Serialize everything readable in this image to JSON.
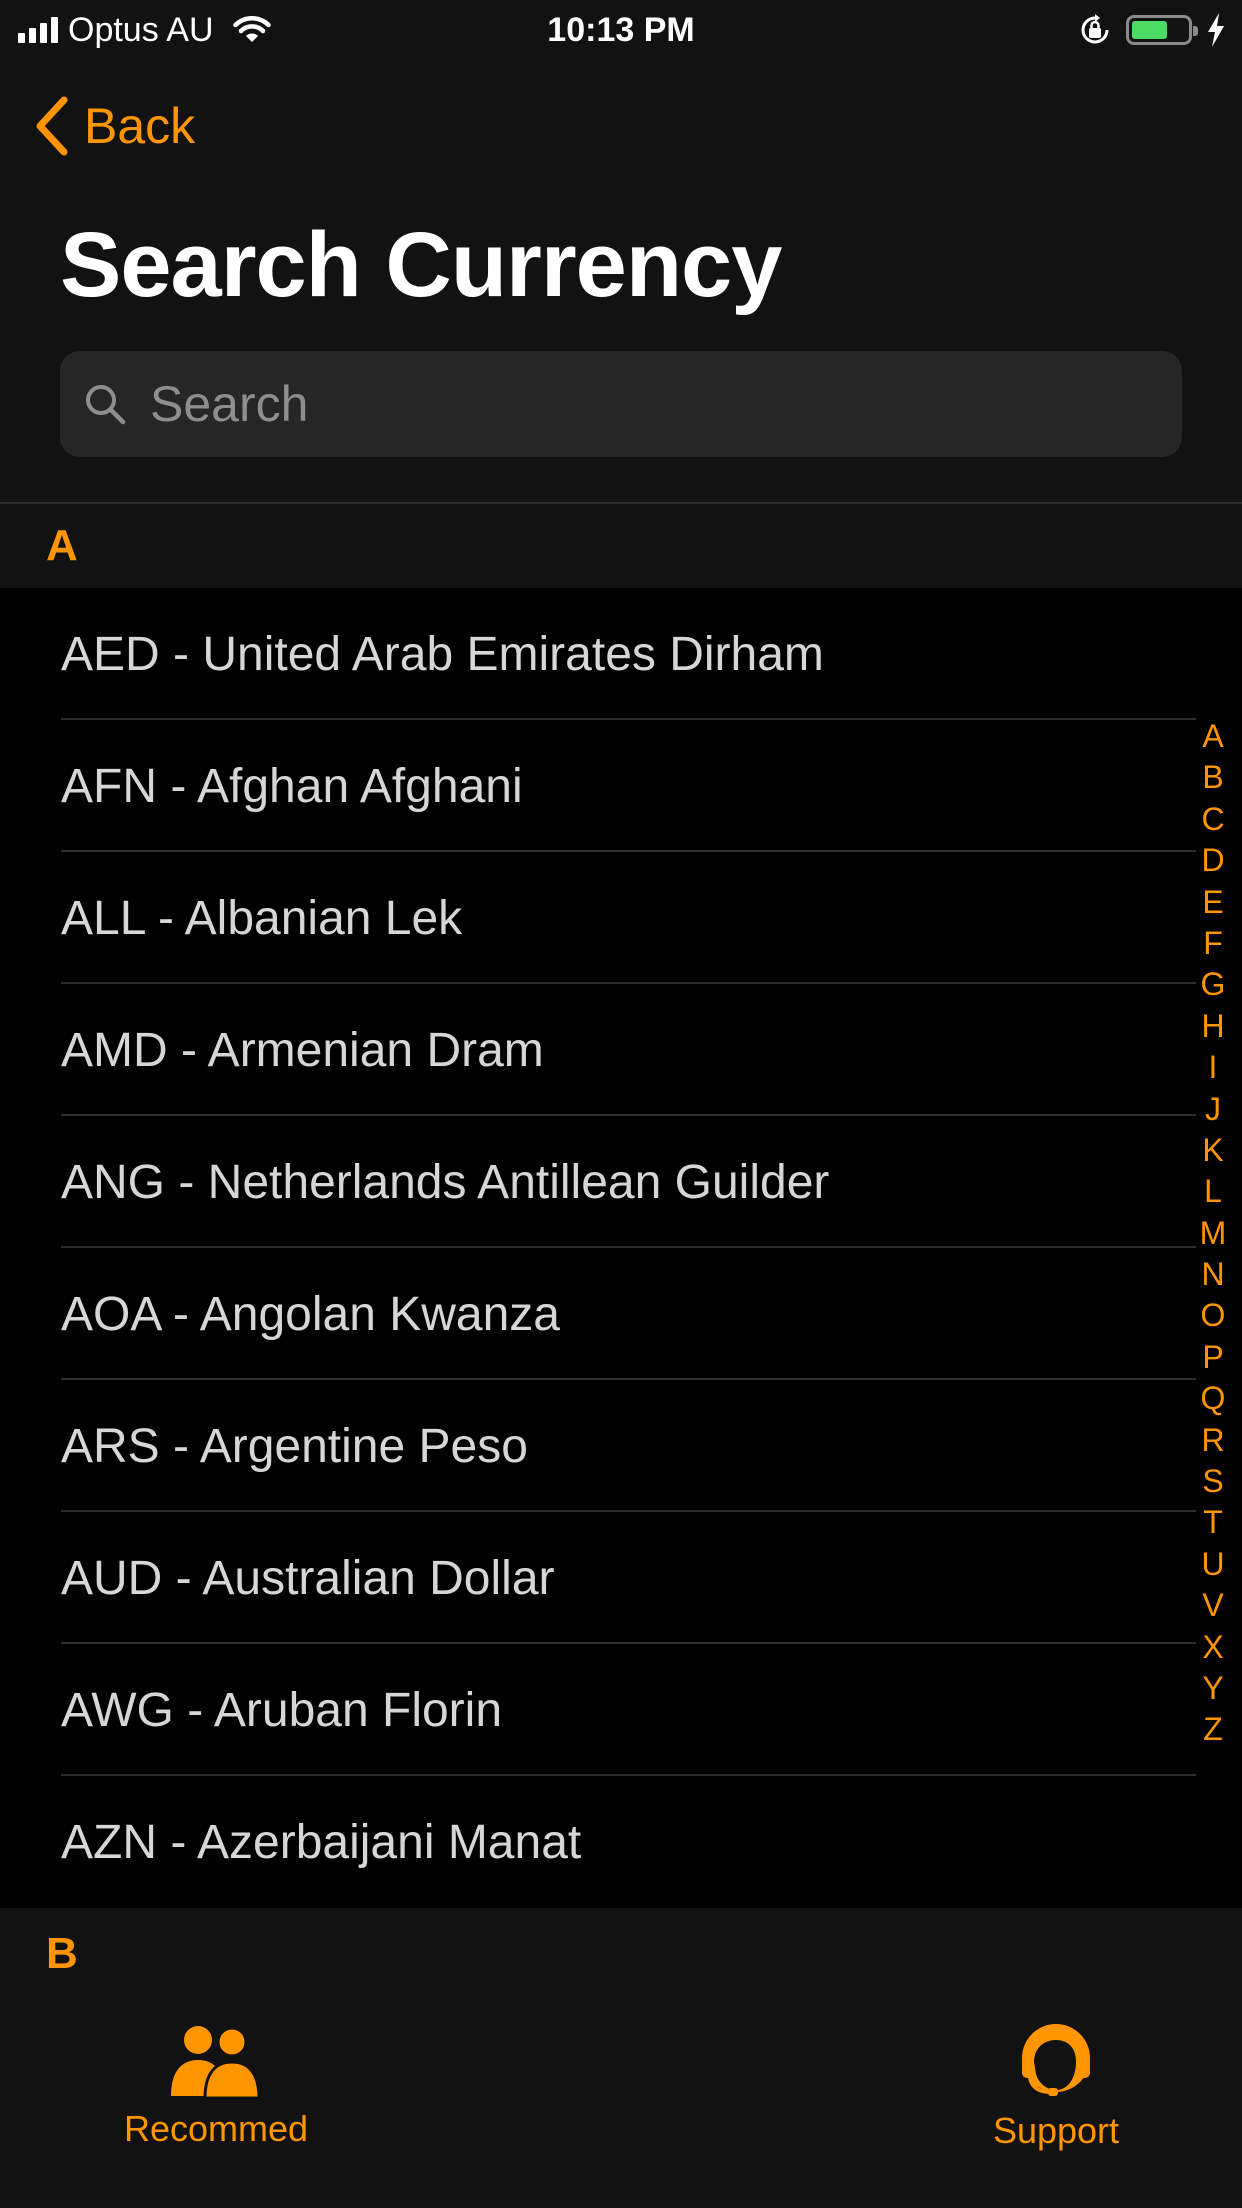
{
  "status_bar": {
    "carrier": "Optus AU",
    "time": "10:13 PM",
    "battery_level": 0.65
  },
  "nav": {
    "back_label": "Back",
    "title": "Search Currency"
  },
  "search": {
    "placeholder": "Search",
    "value": ""
  },
  "sections": [
    {
      "letter": "A",
      "items": [
        "AED - United Arab Emirates Dirham",
        "AFN - Afghan Afghani",
        "ALL - Albanian Lek",
        "AMD - Armenian Dram",
        "ANG - Netherlands Antillean Guilder",
        "AOA - Angolan Kwanza",
        "ARS - Argentine Peso",
        "AUD - Australian Dollar",
        "AWG - Aruban Florin",
        "AZN - Azerbaijani Manat"
      ]
    },
    {
      "letter": "B",
      "items": []
    }
  ],
  "index_letters": [
    "A",
    "B",
    "C",
    "D",
    "E",
    "F",
    "G",
    "H",
    "I",
    "J",
    "K",
    "L",
    "M",
    "N",
    "O",
    "P",
    "Q",
    "R",
    "S",
    "T",
    "U",
    "V",
    "X",
    "Y",
    "Z"
  ],
  "tab_bar": {
    "recommend_label": "Recommed",
    "support_label": "Support"
  },
  "colors": {
    "accent": "#ff9500",
    "background": "#000000",
    "header_background": "#121212",
    "search_field": "#262626",
    "battery": "#4cd964"
  },
  "icons": {
    "back": "chevron-left-icon",
    "search": "search-icon",
    "recommend": "people-icon",
    "support": "headset-icon"
  }
}
